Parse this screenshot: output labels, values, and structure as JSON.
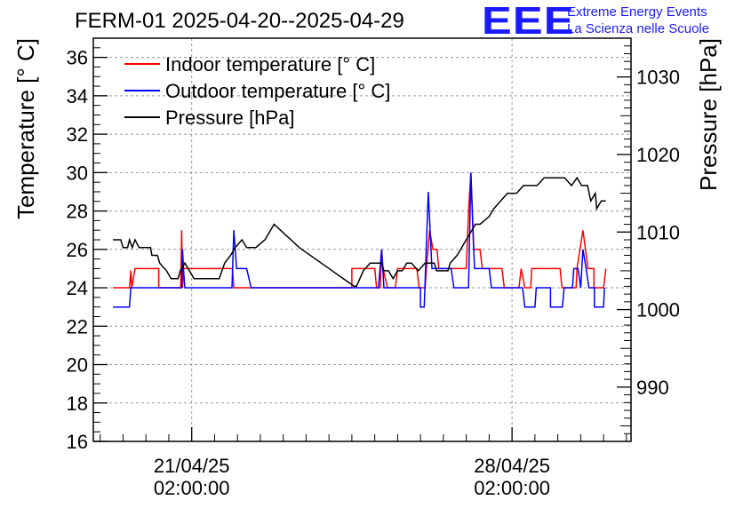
{
  "title": "FERM-01 2025-04-20--2025-04-29",
  "logo": {
    "text": "EEE",
    "line1": "Extreme Energy Events",
    "line2": "La Scienza nelle Scuole"
  },
  "colors": {
    "indoor": "#ff0000",
    "outdoor": "#0000ff",
    "pressure": "#000000",
    "logo": "#1a1aff"
  },
  "chart_data": {
    "type": "line",
    "xlabel_ticks": [
      {
        "x": 0,
        "line1": "21/04/25",
        "line2": "02:00:00"
      },
      {
        "x": 7,
        "line1": "28/04/25",
        "line2": "02:00:00"
      }
    ],
    "x_unit": "days since 21/04/25 02:00:00",
    "xlim": [
      -2.15,
      9.6
    ],
    "ylabel": "Temperature [° C]",
    "ylim": [
      16,
      37
    ],
    "yticks": [
      16,
      18,
      20,
      22,
      24,
      26,
      28,
      30,
      32,
      34,
      36
    ],
    "y2label": "Pressure [hPa]",
    "y2lim": [
      983,
      1035
    ],
    "y2ticks": [
      990,
      1000,
      1010,
      1020,
      1030
    ],
    "grid": true,
    "legend_position": "top-left",
    "series": [
      {
        "name": "Indoor temperature [° C]",
        "axis": "left",
        "color": "#ff0000",
        "points": [
          [
            -1.72,
            24
          ],
          [
            -1.36,
            24
          ],
          [
            -1.33,
            24.9
          ],
          [
            -1.31,
            24
          ],
          [
            -1.24,
            25
          ],
          [
            -0.72,
            25
          ],
          [
            -0.72,
            24
          ],
          [
            -0.24,
            24
          ],
          [
            -0.22,
            27
          ],
          [
            -0.2,
            24
          ],
          [
            -0.18,
            25
          ],
          [
            0.89,
            25
          ],
          [
            0.92,
            24
          ],
          [
            3.5,
            24
          ],
          [
            3.5,
            25
          ],
          [
            4.0,
            25
          ],
          [
            4.04,
            24
          ],
          [
            4.12,
            24
          ],
          [
            4.15,
            26
          ],
          [
            4.18,
            25
          ],
          [
            4.28,
            24
          ],
          [
            4.45,
            24
          ],
          [
            4.5,
            25
          ],
          [
            4.92,
            25
          ],
          [
            4.97,
            24
          ],
          [
            5.1,
            24
          ],
          [
            5.13,
            25
          ],
          [
            5.2,
            27
          ],
          [
            5.27,
            26
          ],
          [
            5.36,
            26
          ],
          [
            5.4,
            25
          ],
          [
            6.0,
            25
          ],
          [
            6.05,
            28
          ],
          [
            6.1,
            30
          ],
          [
            6.16,
            26
          ],
          [
            6.3,
            26
          ],
          [
            6.35,
            25
          ],
          [
            6.78,
            25
          ],
          [
            6.83,
            24
          ],
          [
            7.15,
            24
          ],
          [
            7.2,
            25
          ],
          [
            7.28,
            24
          ],
          [
            7.41,
            24
          ],
          [
            7.43,
            25
          ],
          [
            8.05,
            25
          ],
          [
            8.09,
            24
          ],
          [
            8.4,
            24
          ],
          [
            8.42,
            25
          ],
          [
            8.55,
            27
          ],
          [
            8.66,
            25
          ],
          [
            8.79,
            25
          ],
          [
            8.79,
            24
          ],
          [
            9.0,
            24
          ],
          [
            9.05,
            25
          ]
        ]
      },
      {
        "name": "Outdoor temperature [° C]",
        "axis": "left",
        "color": "#0000ff",
        "points": [
          [
            -1.72,
            23
          ],
          [
            -1.36,
            23
          ],
          [
            -1.33,
            24
          ],
          [
            -0.22,
            24
          ],
          [
            -0.2,
            26
          ],
          [
            -0.18,
            25
          ],
          [
            -0.15,
            24
          ],
          [
            0.88,
            24
          ],
          [
            0.92,
            27
          ],
          [
            0.98,
            25
          ],
          [
            1.2,
            25
          ],
          [
            1.3,
            24
          ],
          [
            4.08,
            24
          ],
          [
            4.15,
            26
          ],
          [
            4.2,
            24
          ],
          [
            5.0,
            24
          ],
          [
            5.0,
            23
          ],
          [
            5.08,
            23
          ],
          [
            5.17,
            29
          ],
          [
            5.25,
            25
          ],
          [
            5.4,
            25
          ],
          [
            5.67,
            25
          ],
          [
            5.73,
            24
          ],
          [
            6.05,
            24
          ],
          [
            6.1,
            30
          ],
          [
            6.18,
            25
          ],
          [
            6.5,
            25
          ],
          [
            6.55,
            24
          ],
          [
            7.23,
            24
          ],
          [
            7.28,
            23
          ],
          [
            7.5,
            23
          ],
          [
            7.53,
            24
          ],
          [
            7.84,
            24
          ],
          [
            7.84,
            23
          ],
          [
            8.1,
            23
          ],
          [
            8.14,
            24
          ],
          [
            8.32,
            24
          ],
          [
            8.35,
            25
          ],
          [
            8.44,
            25
          ],
          [
            8.5,
            24
          ],
          [
            8.55,
            26
          ],
          [
            8.62,
            25
          ],
          [
            8.68,
            24
          ],
          [
            8.8,
            24
          ],
          [
            8.8,
            23
          ],
          [
            9.0,
            23
          ],
          [
            9.02,
            24
          ]
        ]
      },
      {
        "name": "Pressure [hPa]",
        "axis": "right",
        "color": "#000000",
        "points": [
          [
            -1.72,
            1009
          ],
          [
            -1.55,
            1009
          ],
          [
            -1.5,
            1008
          ],
          [
            -1.4,
            1008
          ],
          [
            -1.36,
            1009
          ],
          [
            -1.3,
            1008
          ],
          [
            -1.24,
            1009
          ],
          [
            -1.15,
            1008
          ],
          [
            -0.9,
            1008
          ],
          [
            -0.87,
            1007
          ],
          [
            -0.75,
            1007
          ],
          [
            -0.7,
            1006
          ],
          [
            -0.55,
            1005
          ],
          [
            -0.45,
            1004
          ],
          [
            -0.3,
            1004
          ],
          [
            -0.25,
            1005
          ],
          [
            -0.15,
            1006
          ],
          [
            -0.05,
            1005
          ],
          [
            0.05,
            1004
          ],
          [
            0.3,
            1004
          ],
          [
            0.6,
            1004
          ],
          [
            0.72,
            1006
          ],
          [
            0.85,
            1007
          ],
          [
            0.95,
            1008
          ],
          [
            1.1,
            1009
          ],
          [
            1.2,
            1008
          ],
          [
            1.4,
            1008
          ],
          [
            1.6,
            1009
          ],
          [
            1.8,
            1011
          ],
          [
            2.35,
            1008
          ],
          [
            3.55,
            1003
          ],
          [
            3.6,
            1003
          ],
          [
            3.75,
            1005
          ],
          [
            3.9,
            1006
          ],
          [
            4.05,
            1006
          ],
          [
            4.15,
            1006
          ],
          [
            4.2,
            1005
          ],
          [
            4.3,
            1005
          ],
          [
            4.4,
            1004
          ],
          [
            4.5,
            1005
          ],
          [
            4.6,
            1005
          ],
          [
            4.7,
            1006
          ],
          [
            4.8,
            1006
          ],
          [
            4.95,
            1005
          ],
          [
            5.1,
            1006
          ],
          [
            5.3,
            1006
          ],
          [
            5.35,
            1005
          ],
          [
            5.5,
            1005
          ],
          [
            5.6,
            1005
          ],
          [
            5.65,
            1006
          ],
          [
            5.8,
            1007
          ],
          [
            5.9,
            1008
          ],
          [
            6.0,
            1009
          ],
          [
            6.1,
            1010
          ],
          [
            6.2,
            1011
          ],
          [
            6.3,
            1011
          ],
          [
            6.5,
            1012
          ],
          [
            6.6,
            1013
          ],
          [
            6.75,
            1014
          ],
          [
            6.9,
            1015
          ],
          [
            7.1,
            1015
          ],
          [
            7.25,
            1016
          ],
          [
            7.4,
            1016
          ],
          [
            7.55,
            1016
          ],
          [
            7.7,
            1017
          ],
          [
            7.85,
            1017
          ],
          [
            8.0,
            1017
          ],
          [
            8.15,
            1017
          ],
          [
            8.3,
            1016
          ],
          [
            8.42,
            1017
          ],
          [
            8.52,
            1016
          ],
          [
            8.65,
            1016
          ],
          [
            8.72,
            1014
          ],
          [
            8.82,
            1015
          ],
          [
            8.85,
            1013
          ],
          [
            8.95,
            1014
          ],
          [
            9.05,
            1014
          ]
        ]
      }
    ]
  }
}
